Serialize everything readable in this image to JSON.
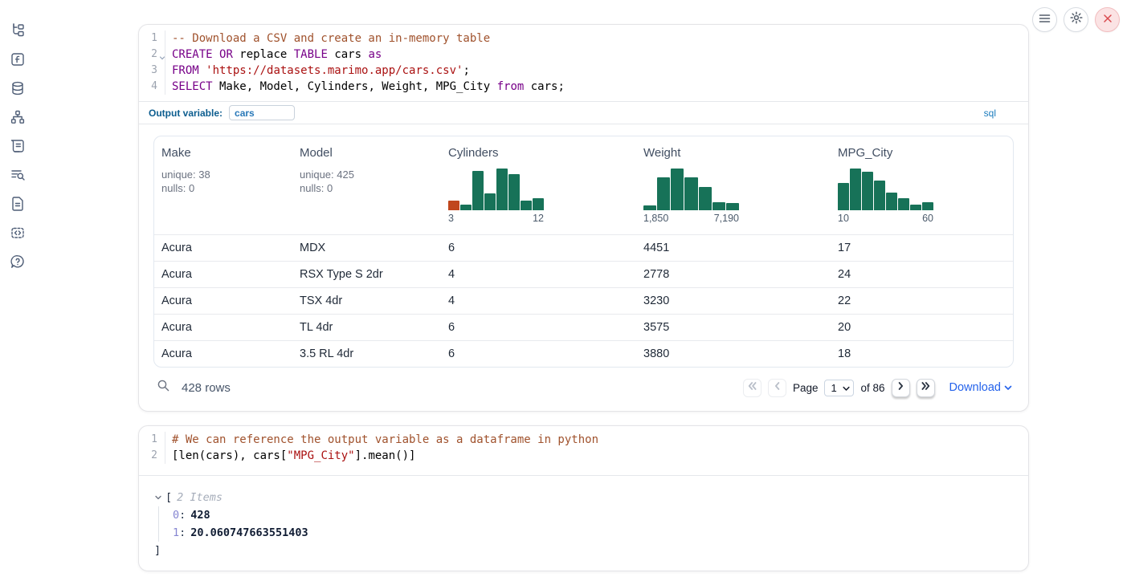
{
  "sidebar": {
    "items": [
      {
        "icon": "file-tree-icon"
      },
      {
        "icon": "functions-icon"
      },
      {
        "icon": "datasources-icon"
      },
      {
        "icon": "dependency-graph-icon"
      },
      {
        "icon": "scratchpad-icon"
      },
      {
        "icon": "logs-icon"
      },
      {
        "icon": "documentation-icon"
      },
      {
        "icon": "snippets-icon"
      },
      {
        "icon": "help-icon"
      }
    ]
  },
  "topbar": {
    "buttons": [
      {
        "icon": "menu-icon"
      },
      {
        "icon": "settings-gear-icon"
      },
      {
        "icon": "shutdown-close-icon"
      }
    ]
  },
  "sql_cell": {
    "line_numbers": [
      "1",
      "2",
      "3",
      "4"
    ],
    "code": [
      {
        "tokens": [
          {
            "c": "comment",
            "t": "-- Download a CSV and create an in-memory table"
          }
        ]
      },
      {
        "tokens": [
          {
            "c": "kw",
            "t": "CREATE"
          },
          {
            "c": "plain",
            "t": " "
          },
          {
            "c": "kw",
            "t": "OR"
          },
          {
            "c": "plain",
            "t": " replace "
          },
          {
            "c": "kw",
            "t": "TABLE"
          },
          {
            "c": "plain",
            "t": " cars "
          },
          {
            "c": "kw",
            "t": "as"
          }
        ]
      },
      {
        "tokens": [
          {
            "c": "kw",
            "t": "FROM"
          },
          {
            "c": "plain",
            "t": " "
          },
          {
            "c": "str",
            "t": "'https://datasets.marimo.app/cars.csv'"
          },
          {
            "c": "plain",
            "t": ";"
          }
        ]
      },
      {
        "tokens": [
          {
            "c": "kw",
            "t": "SELECT"
          },
          {
            "c": "plain",
            "t": " Make, Model, Cylinders, Weight, MPG_City "
          },
          {
            "c": "kw",
            "t": "from"
          },
          {
            "c": "plain",
            "t": " cars;"
          }
        ]
      }
    ],
    "output_variable_label": "Output variable:",
    "output_variable_value": "cars",
    "language_badge": "sql"
  },
  "table": {
    "columns": [
      {
        "name": "Make",
        "unique": "unique: 38",
        "nulls": "nulls: 0"
      },
      {
        "name": "Model",
        "unique": "unique: 425",
        "nulls": "nulls: 0"
      },
      {
        "name": "Cylinders"
      },
      {
        "name": "Weight"
      },
      {
        "name": "MPG_City"
      }
    ],
    "rows": [
      [
        "Acura",
        "MDX",
        "6",
        "4451",
        "17"
      ],
      [
        "Acura",
        "RSX Type S 2dr",
        "4",
        "2778",
        "24"
      ],
      [
        "Acura",
        "TSX 4dr",
        "4",
        "3230",
        "22"
      ],
      [
        "Acura",
        "TL 4dr",
        "6",
        "3575",
        "20"
      ],
      [
        "Acura",
        "3.5 RL 4dr",
        "6",
        "3880",
        "18"
      ]
    ],
    "row_count": "428 rows",
    "pagination": {
      "page_label": "Page",
      "page_value": "1",
      "total_label": "of 86",
      "download_label": "Download"
    }
  },
  "chart_data": [
    {
      "type": "bar",
      "title": "Cylinders histogram",
      "x_range": [
        3,
        12
      ],
      "x_min_label": "3",
      "x_max_label": "12",
      "relative_counts": [
        0.24,
        0.14,
        0.94,
        0.4,
        1.0,
        0.86,
        0.24,
        0.28
      ],
      "bar_color": "#177258",
      "highlight": {
        "index": 0,
        "color": "#c0461d"
      }
    },
    {
      "type": "bar",
      "title": "Weight histogram",
      "x_range": [
        1850,
        7190
      ],
      "x_min_label": "1,850",
      "x_max_label": "7,190",
      "relative_counts": [
        0.12,
        0.78,
        1.0,
        0.78,
        0.56,
        0.2,
        0.17
      ],
      "bar_color": "#177258"
    },
    {
      "type": "bar",
      "title": "MPG_City histogram",
      "x_range": [
        10,
        60
      ],
      "x_min_label": "10",
      "x_max_label": "60",
      "relative_counts": [
        0.65,
        1.0,
        0.92,
        0.71,
        0.42,
        0.29,
        0.14,
        0.2
      ],
      "bar_color": "#177258"
    }
  ],
  "python_cell": {
    "line_numbers": [
      "1",
      "2"
    ],
    "code": [
      {
        "tokens": [
          {
            "c": "comment",
            "t": "# We can reference the output variable as a dataframe in python"
          }
        ]
      },
      {
        "tokens": [
          {
            "c": "plain",
            "t": "[len(cars), cars["
          },
          {
            "c": "str",
            "t": "\"MPG_City\""
          },
          {
            "c": "plain",
            "t": "].mean()]"
          }
        ]
      }
    ]
  },
  "output_tree": {
    "open_bracket": "[",
    "items_label": "2 Items",
    "entries": [
      {
        "key": "0",
        "value": "428"
      },
      {
        "key": "1",
        "value": "20.060747663551403"
      }
    ],
    "close_bracket": "]"
  },
  "colors": {
    "keyword": "#770088",
    "string": "#aa1111",
    "comment": "#a0522d",
    "hist_green": "#177258",
    "hist_orange": "#c0461d",
    "accent_blue": "#2563eb",
    "badge_blue": "#1a7bbd"
  }
}
